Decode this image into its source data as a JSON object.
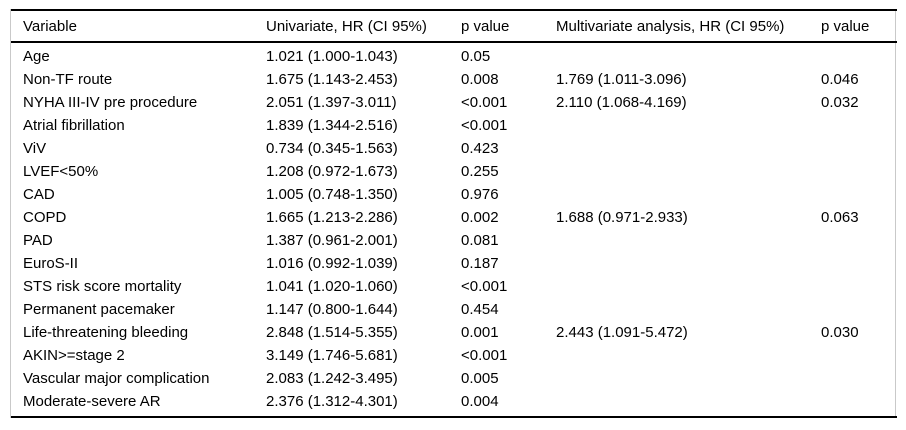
{
  "table": {
    "columns": [
      "Variable",
      "Univariate, HR (CI 95%)",
      "p value",
      "Multivariate analysis, HR (CI 95%)",
      "p value"
    ],
    "rows": [
      {
        "variable": "Age",
        "uni_hr": "1.021 (1.000-1.043)",
        "uni_p": "0.05",
        "multi_hr": "",
        "multi_p": ""
      },
      {
        "variable": "Non-TF route",
        "uni_hr": "1.675 (1.143-2.453)",
        "uni_p": "0.008",
        "multi_hr": "1.769 (1.011-3.096)",
        "multi_p": "0.046"
      },
      {
        "variable": "NYHA III-IV pre procedure",
        "uni_hr": "2.051 (1.397-3.011)",
        "uni_p": "<0.001",
        "multi_hr": "2.110 (1.068-4.169)",
        "multi_p": "0.032"
      },
      {
        "variable": "Atrial fibrillation",
        "uni_hr": "1.839 (1.344-2.516)",
        "uni_p": "<0.001",
        "multi_hr": "",
        "multi_p": ""
      },
      {
        "variable": "ViV",
        "uni_hr": "0.734 (0.345-1.563)",
        "uni_p": "0.423",
        "multi_hr": "",
        "multi_p": ""
      },
      {
        "variable": "LVEF<50%",
        "uni_hr": "1.208 (0.972-1.673)",
        "uni_p": "0.255",
        "multi_hr": "",
        "multi_p": ""
      },
      {
        "variable": "CAD",
        "uni_hr": "1.005 (0.748-1.350)",
        "uni_p": "0.976",
        "multi_hr": "",
        "multi_p": ""
      },
      {
        "variable": "COPD",
        "uni_hr": "1.665 (1.213-2.286)",
        "uni_p": "0.002",
        "multi_hr": "1.688 (0.971-2.933)",
        "multi_p": "0.063"
      },
      {
        "variable": "PAD",
        "uni_hr": "1.387 (0.961-2.001)",
        "uni_p": "0.081",
        "multi_hr": "",
        "multi_p": ""
      },
      {
        "variable": "EuroS-II",
        "uni_hr": "1.016 (0.992-1.039)",
        "uni_p": "0.187",
        "multi_hr": "",
        "multi_p": ""
      },
      {
        "variable": "STS risk score mortality",
        "uni_hr": "1.041 (1.020-1.060)",
        "uni_p": "<0.001",
        "multi_hr": "",
        "multi_p": ""
      },
      {
        "variable": "Permanent pacemaker",
        "uni_hr": "1.147 (0.800-1.644)",
        "uni_p": "0.454",
        "multi_hr": "",
        "multi_p": ""
      },
      {
        "variable": "Life-threatening bleeding",
        "uni_hr": "2.848 (1.514-5.355)",
        "uni_p": "0.001",
        "multi_hr": "2.443 (1.091-5.472)",
        "multi_p": "0.030"
      },
      {
        "variable": "AKIN>=stage 2",
        "uni_hr": "3.149 (1.746-5.681)",
        "uni_p": "<0.001",
        "multi_hr": "",
        "multi_p": ""
      },
      {
        "variable": "Vascular major complication",
        "uni_hr": "2.083 (1.242-3.495)",
        "uni_p": "0.005",
        "multi_hr": "",
        "multi_p": ""
      },
      {
        "variable": "Moderate-severe AR",
        "uni_hr": "2.376 (1.312-4.301)",
        "uni_p": "0.004",
        "multi_hr": "",
        "multi_p": ""
      }
    ]
  },
  "colors": {
    "text": "#000000",
    "rule": "#000000",
    "side_border": "#c9c9c9",
    "background": "#ffffff"
  }
}
